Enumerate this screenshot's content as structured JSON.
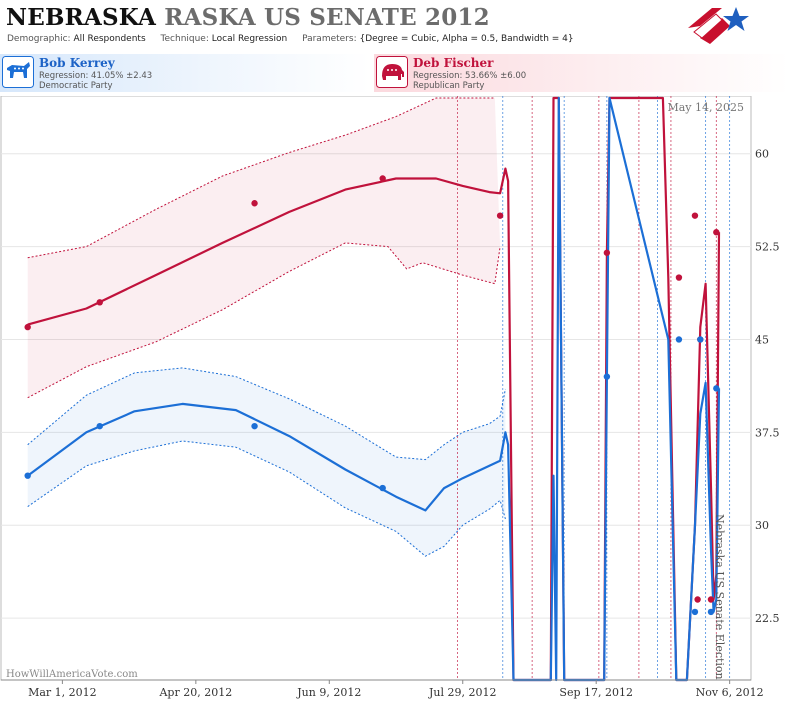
{
  "header": {
    "title_state": "NEBRASKA",
    "title_rest": "RASKA US SENATE 2012",
    "params": [
      {
        "key": "Demographic:",
        "value": "All Respondents"
      },
      {
        "key": "Technique:",
        "value": "Local Regression"
      },
      {
        "key": "Parameters:",
        "value": "{Degree = Cubic, Alpha = 0.5, Bandwidth = 4}"
      }
    ]
  },
  "candidates": {
    "dem": {
      "name": "Bob Kerrey",
      "regression": "Regression: 41.05% ±2.43",
      "party": "Democratic Party",
      "color": "#1c6fd6"
    },
    "rep": {
      "name": "Deb Fischer",
      "regression": "Regression: 53.66% ±6.00",
      "party": "Republican Party",
      "color": "#c0123c"
    }
  },
  "chart_data": {
    "type": "line",
    "date_stamp": "May 14, 2025",
    "watermark": "HowWillAmericaVote.com",
    "side_label": "Nebraska US Senate Election",
    "ylim": [
      17.5,
      64.5
    ],
    "y_ticks": [
      "22.5",
      "30",
      "37.5",
      "45",
      "52.5",
      "60"
    ],
    "x_range": [
      "2012-02-07",
      "2012-11-14"
    ],
    "x_ticks": [
      {
        "date": "2012-03-01",
        "label": "Mar 1, 2012"
      },
      {
        "date": "2012-04-20",
        "label": "Apr 20, 2012"
      },
      {
        "date": "2012-06-09",
        "label": "Jun 9, 2012"
      },
      {
        "date": "2012-07-29",
        "label": "Jul 29, 2012"
      },
      {
        "date": "2012-09-17",
        "label": "Sep 17, 2012"
      },
      {
        "date": "2012-11-06",
        "label": "Nov 6, 2012"
      }
    ],
    "poll_dates": [
      "2012-07-27",
      "2012-08-13",
      "2012-08-24",
      "2012-09-05",
      "2012-09-18",
      "2012-09-21",
      "2012-10-03",
      "2012-10-10",
      "2012-10-15",
      "2012-10-28",
      "2012-11-01",
      "2012-11-06"
    ],
    "series": [
      {
        "name": "Deb Fischer",
        "color": "#c0123c",
        "points": [
          [
            "2012-02-17",
            46
          ],
          [
            "2012-03-15",
            48
          ],
          [
            "2012-05-12",
            56
          ],
          [
            "2012-06-29",
            58
          ],
          [
            "2012-08-12",
            55
          ],
          [
            "2012-09-21",
            52
          ],
          [
            "2012-10-18",
            50
          ],
          [
            "2012-10-24",
            55
          ],
          [
            "2012-10-25",
            24
          ],
          [
            "2012-10-26",
            45
          ],
          [
            "2012-10-30",
            24
          ],
          [
            "2012-11-01",
            53.66
          ]
        ],
        "fit": [
          [
            "2012-02-17",
            46.2
          ],
          [
            "2012-03-10",
            47.5
          ],
          [
            "2012-04-05",
            50.2
          ],
          [
            "2012-04-30",
            52.8
          ],
          [
            "2012-05-25",
            55.3
          ],
          [
            "2012-06-15",
            57.1
          ],
          [
            "2012-07-04",
            58.0
          ],
          [
            "2012-07-19",
            58.0
          ],
          [
            "2012-07-29",
            57.4
          ],
          [
            "2012-08-08",
            56.9
          ],
          [
            "2012-08-12",
            56.8
          ],
          [
            "2012-08-14",
            58.8
          ],
          [
            "2012-08-15",
            57.8
          ],
          [
            "2012-08-17",
            17.5
          ],
          [
            "2012-08-31",
            17.5
          ],
          [
            "2012-09-01",
            64.5
          ],
          [
            "2012-09-03",
            64.5
          ],
          [
            "2012-09-05",
            17.5
          ],
          [
            "2012-09-20",
            17.5
          ],
          [
            "2012-09-21",
            52
          ],
          [
            "2012-09-22",
            64.5
          ],
          [
            "2012-10-12",
            64.5
          ],
          [
            "2012-10-14",
            50
          ],
          [
            "2012-10-17",
            17.5
          ],
          [
            "2012-10-21",
            17.5
          ],
          [
            "2012-10-24",
            30
          ],
          [
            "2012-10-26",
            46
          ],
          [
            "2012-10-28",
            49.5
          ],
          [
            "2012-10-30",
            33
          ],
          [
            "2012-10-31",
            24
          ],
          [
            "2012-11-01",
            26
          ],
          [
            "2012-11-02",
            53.66
          ]
        ],
        "upper": [
          [
            "2012-02-17",
            51.6
          ],
          [
            "2012-03-10",
            52.5
          ],
          [
            "2012-04-05",
            55.5
          ],
          [
            "2012-04-30",
            58.2
          ],
          [
            "2012-05-25",
            60.1
          ],
          [
            "2012-06-15",
            61.5
          ],
          [
            "2012-07-04",
            63.0
          ],
          [
            "2012-07-19",
            64.5
          ],
          [
            "2012-08-10",
            64.5
          ]
        ],
        "lower": [
          [
            "2012-02-17",
            40.3
          ],
          [
            "2012-03-10",
            42.8
          ],
          [
            "2012-04-05",
            44.8
          ],
          [
            "2012-04-30",
            47.4
          ],
          [
            "2012-05-25",
            50.5
          ],
          [
            "2012-06-15",
            52.8
          ],
          [
            "2012-07-01",
            52.5
          ],
          [
            "2012-07-08",
            50.7
          ],
          [
            "2012-07-14",
            51.2
          ],
          [
            "2012-07-29",
            50.2
          ],
          [
            "2012-08-10",
            49.5
          ],
          [
            "2012-08-12",
            52.5
          ]
        ]
      },
      {
        "name": "Bob Kerrey",
        "color": "#1c6fd6",
        "points": [
          [
            "2012-02-17",
            34
          ],
          [
            "2012-03-15",
            38
          ],
          [
            "2012-05-12",
            38
          ],
          [
            "2012-06-29",
            33
          ],
          [
            "2012-09-21",
            42
          ],
          [
            "2012-10-18",
            45
          ],
          [
            "2012-10-24",
            23
          ],
          [
            "2012-10-26",
            45
          ],
          [
            "2012-10-30",
            23
          ],
          [
            "2012-11-01",
            41.05
          ]
        ],
        "fit": [
          [
            "2012-02-17",
            34.0
          ],
          [
            "2012-03-10",
            37.5
          ],
          [
            "2012-03-28",
            39.2
          ],
          [
            "2012-04-15",
            39.8
          ],
          [
            "2012-05-05",
            39.3
          ],
          [
            "2012-05-25",
            37.2
          ],
          [
            "2012-06-15",
            34.5
          ],
          [
            "2012-07-04",
            32.3
          ],
          [
            "2012-07-15",
            31.2
          ],
          [
            "2012-07-22",
            33.0
          ],
          [
            "2012-07-29",
            33.8
          ],
          [
            "2012-08-08",
            34.8
          ],
          [
            "2012-08-12",
            35.2
          ],
          [
            "2012-08-14",
            37.5
          ],
          [
            "2012-08-15",
            36.5
          ],
          [
            "2012-08-17",
            17.5
          ],
          [
            "2012-08-31",
            17.5
          ],
          [
            "2012-09-01",
            34
          ],
          [
            "2012-09-02",
            17.5
          ],
          [
            "2012-09-03",
            64.5
          ],
          [
            "2012-09-05",
            17.5
          ],
          [
            "2012-09-20",
            17.5
          ],
          [
            "2012-09-21",
            42
          ],
          [
            "2012-09-22",
            64.5
          ],
          [
            "2012-10-14",
            45
          ],
          [
            "2012-10-17",
            17.5
          ],
          [
            "2012-10-21",
            17.5
          ],
          [
            "2012-10-24",
            30
          ],
          [
            "2012-10-26",
            39
          ],
          [
            "2012-10-28",
            41.5
          ],
          [
            "2012-10-30",
            28
          ],
          [
            "2012-10-31",
            23
          ],
          [
            "2012-11-01",
            24
          ],
          [
            "2012-11-02",
            41.05
          ]
        ],
        "upper": [
          [
            "2012-02-17",
            36.5
          ],
          [
            "2012-03-10",
            40.5
          ],
          [
            "2012-03-28",
            42.3
          ],
          [
            "2012-04-15",
            42.7
          ],
          [
            "2012-05-05",
            42.0
          ],
          [
            "2012-05-25",
            40.2
          ],
          [
            "2012-06-15",
            38.0
          ],
          [
            "2012-07-04",
            35.5
          ],
          [
            "2012-07-15",
            35.3
          ],
          [
            "2012-07-22",
            36.5
          ],
          [
            "2012-07-29",
            37.5
          ],
          [
            "2012-08-08",
            38.2
          ],
          [
            "2012-08-12",
            38.8
          ],
          [
            "2012-08-14",
            41.0
          ]
        ],
        "lower": [
          [
            "2012-02-17",
            31.5
          ],
          [
            "2012-03-10",
            34.8
          ],
          [
            "2012-03-28",
            36.0
          ],
          [
            "2012-04-15",
            36.8
          ],
          [
            "2012-05-05",
            36.3
          ],
          [
            "2012-05-25",
            34.3
          ],
          [
            "2012-06-15",
            31.4
          ],
          [
            "2012-07-04",
            29.5
          ],
          [
            "2012-07-15",
            27.5
          ],
          [
            "2012-07-22",
            28.3
          ],
          [
            "2012-07-29",
            30.0
          ],
          [
            "2012-08-08",
            31.3
          ],
          [
            "2012-08-12",
            32.0
          ],
          [
            "2012-08-14",
            30.5
          ]
        ]
      }
    ]
  }
}
